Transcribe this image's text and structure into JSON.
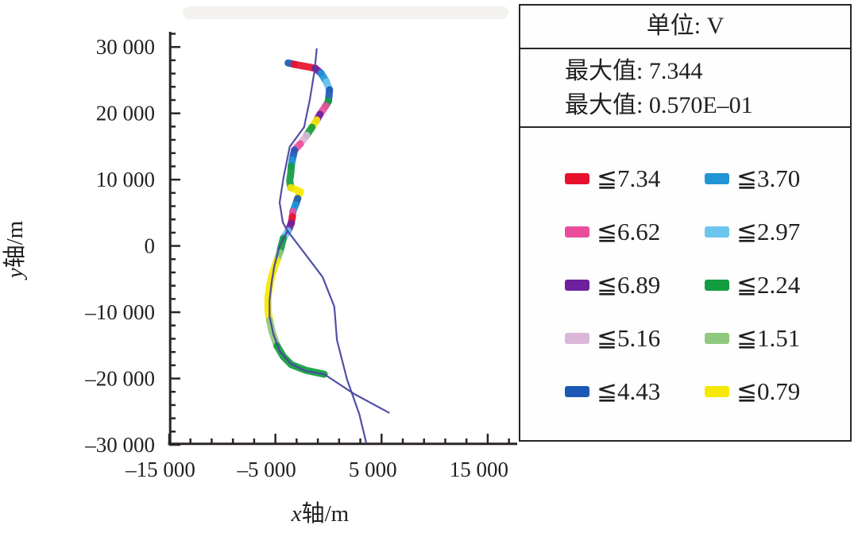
{
  "legend": {
    "unit_label": "单位: V",
    "stat_lines": [
      "最大值: 7.344",
      "最大值: 0.570E–01"
    ],
    "columns": {
      "left": [
        {
          "color": "red",
          "hex": "#e8112d",
          "label": "≦7.34"
        },
        {
          "color": "magenta",
          "hex": "#ea4d9c",
          "label": "≦6.62"
        },
        {
          "color": "purple",
          "hex": "#6e219d",
          "label": "≦6.89"
        },
        {
          "color": "light_pink",
          "hex": "#dcb6d9",
          "label": "≦5.16"
        },
        {
          "color": "dark_blue",
          "hex": "#1c58b5",
          "label": "≦4.43"
        }
      ],
      "right": [
        {
          "color": "blue",
          "hex": "#1f95d6",
          "label": "≦3.70"
        },
        {
          "color": "light_blue",
          "hex": "#6cc5ed",
          "label": "≦2.97"
        },
        {
          "color": "green",
          "hex": "#129c3f",
          "label": "≦2.24"
        },
        {
          "color": "light_green",
          "hex": "#8fc97d",
          "label": "≦1.51"
        },
        {
          "color": "yellow",
          "hex": "#f6e800",
          "label": "≦0.79"
        }
      ]
    }
  },
  "chart_data": {
    "type": "line",
    "title": "",
    "unit": "V",
    "max_value": "7.344",
    "second_max_value": "0.570E–01",
    "grid": false,
    "x_axis": {
      "label": "x轴/m",
      "label_var": "x",
      "label_rest": "轴/m",
      "range": [
        -15000,
        17700
      ],
      "minor_step": 2000,
      "major_ticks": [
        {
          "v": -15000,
          "label": "–15 000"
        },
        {
          "v": -5000,
          "label": "–5 000"
        },
        {
          "v": 5000,
          "label": "5 000"
        },
        {
          "v": 15000,
          "label": "15 000"
        }
      ]
    },
    "y_axis": {
      "label": "y轴/m",
      "label_var": "y",
      "label_rest": "轴/m",
      "range": [
        -30000,
        32300
      ],
      "minor_step": 2000,
      "major_ticks": [
        {
          "v": 30000,
          "label": "30 000"
        },
        {
          "v": 20000,
          "label": "20 000"
        },
        {
          "v": 10000,
          "label": "10 000"
        },
        {
          "v": 0,
          "label": "0"
        },
        {
          "v": -10000,
          "label": "–10 000"
        },
        {
          "v": -20000,
          "label": "–20 000"
        },
        {
          "v": -30000,
          "label": "–30 000"
        }
      ]
    },
    "palette": {
      "red": "#e8112d",
      "magenta": "#ea4d9c",
      "purple": "#6e219d",
      "light_pink": "#dcb6d9",
      "dark_blue": "#1c58b5",
      "blue": "#1f95d6",
      "light_blue": "#6cc5ed",
      "green": "#129c3f",
      "light_green": "#8fc97d",
      "yellow": "#f6e800",
      "route": "#4747a2"
    },
    "series": [
      {
        "name": "pipeline-route",
        "type": "thin-line",
        "color": "route",
        "points": [
          [
            -1100,
            29800
          ],
          [
            -1300,
            26550
          ],
          [
            -1750,
            22100
          ],
          [
            -2300,
            17900
          ],
          [
            -3650,
            14950
          ],
          [
            -4250,
            10150
          ],
          [
            -4600,
            6550
          ],
          [
            -4300,
            3550
          ],
          [
            -3850,
            2250
          ],
          [
            -4600,
            0
          ],
          [
            -5100,
            -3050
          ],
          [
            -5350,
            -5450
          ],
          [
            -5550,
            -8200
          ],
          [
            -5550,
            -10600
          ],
          [
            -5200,
            -13250
          ],
          [
            -4600,
            -15850
          ],
          [
            -3550,
            -17800
          ],
          [
            -2150,
            -18850
          ],
          [
            -400,
            -19350
          ],
          [
            2450,
            -22350
          ],
          [
            5750,
            -25200
          ]
        ]
      },
      {
        "name": "route-branch",
        "type": "thin-line",
        "color": "route",
        "points": [
          [
            -3850,
            2250
          ],
          [
            -2300,
            -1000
          ],
          [
            -550,
            -4700
          ],
          [
            550,
            -9150
          ],
          [
            800,
            -14200
          ],
          [
            1750,
            -20150
          ],
          [
            2900,
            -25350
          ],
          [
            3550,
            -29650
          ]
        ]
      },
      {
        "name": "voltage-band",
        "type": "colored-band",
        "segments": [
          {
            "color": "dark_blue",
            "points": [
              [
                -3800,
                27600
              ],
              [
                -3250,
                27400
              ]
            ]
          },
          {
            "color": "red",
            "points": [
              [
                -3250,
                27400
              ],
              [
                -1250,
                26800
              ]
            ]
          },
          {
            "color": "purple",
            "points": [
              [
                -1250,
                26800
              ],
              [
                -700,
                26050
              ]
            ]
          },
          {
            "color": "blue",
            "points": [
              [
                -700,
                26050
              ],
              [
                -200,
                24750
              ]
            ]
          },
          {
            "color": "light_blue",
            "points": [
              [
                -200,
                24750
              ],
              [
                100,
                23550
              ]
            ]
          },
          {
            "color": "dark_blue",
            "points": [
              [
                100,
                23550
              ],
              [
                0,
                21850
              ]
            ]
          },
          {
            "color": "green",
            "points": [
              [
                0,
                21850
              ],
              [
                -250,
                21150
              ]
            ]
          },
          {
            "color": "magenta",
            "points": [
              [
                -250,
                21150
              ],
              [
                -800,
                19850
              ]
            ]
          },
          {
            "color": "purple",
            "points": [
              [
                -800,
                19850
              ],
              [
                -1100,
                19000
              ]
            ]
          },
          {
            "color": "yellow",
            "points": [
              [
                -1100,
                19000
              ],
              [
                -1550,
                17900
              ]
            ]
          },
          {
            "color": "green",
            "points": [
              [
                -1550,
                17900
              ],
              [
                -2050,
                16700
              ]
            ]
          },
          {
            "color": "light_pink",
            "points": [
              [
                -2050,
                16700
              ],
              [
                -2650,
                15400
              ]
            ]
          },
          {
            "color": "magenta",
            "points": [
              [
                -2650,
                15400
              ],
              [
                -3200,
                14450
              ]
            ]
          },
          {
            "color": "dark_blue",
            "points": [
              [
                -3200,
                14450
              ],
              [
                -3400,
                13000
              ]
            ]
          },
          {
            "color": "blue",
            "points": [
              [
                -3400,
                13000
              ],
              [
                -3500,
                12050
              ]
            ]
          },
          {
            "color": "green",
            "points": [
              [
                -3500,
                12050
              ],
              [
                -3550,
                10950
              ],
              [
                -3650,
                9800
              ],
              [
                -3550,
                8800
              ]
            ]
          },
          {
            "color": "yellow",
            "points": [
              [
                -3550,
                8800
              ],
              [
                -2650,
                8200
              ],
              [
                -2900,
                7150
              ]
            ]
          },
          {
            "color": "dark_blue",
            "points": [
              [
                -2900,
                7150
              ],
              [
                -3100,
                6200
              ]
            ]
          },
          {
            "color": "blue",
            "points": [
              [
                -3100,
                6200
              ],
              [
                -3350,
                5200
              ]
            ]
          },
          {
            "color": "magenta",
            "points": [
              [
                -3350,
                5200
              ],
              [
                -3400,
                4400
              ]
            ]
          },
          {
            "color": "red",
            "points": [
              [
                -3400,
                4400
              ],
              [
                -3500,
                3450
              ]
            ]
          },
          {
            "color": "purple",
            "points": [
              [
                -3500,
                3450
              ],
              [
                -3800,
                2250
              ]
            ]
          },
          {
            "color": "light_blue",
            "points": [
              [
                -3800,
                2250
              ],
              [
                -4250,
                1150
              ]
            ]
          },
          {
            "color": "green",
            "points": [
              [
                -4250,
                1150
              ],
              [
                -4600,
                -1000
              ]
            ]
          },
          {
            "color": "light_green",
            "points": [
              [
                -4600,
                -1000
              ],
              [
                -4850,
                -2200
              ]
            ]
          },
          {
            "color": "yellow",
            "points": [
              [
                -4850,
                -2200
              ],
              [
                -5100,
                -3300
              ],
              [
                -5350,
                -4600
              ],
              [
                -5550,
                -6050
              ],
              [
                -5700,
                -7850
              ],
              [
                -5700,
                -9650
              ],
              [
                -5550,
                -11200
              ]
            ]
          },
          {
            "color": "light_green",
            "points": [
              [
                -5550,
                -11200
              ],
              [
                -5300,
                -13000
              ],
              [
                -4850,
                -15050
              ]
            ]
          },
          {
            "color": "green",
            "points": [
              [
                -4850,
                -15050
              ],
              [
                -4250,
                -16700
              ],
              [
                -3500,
                -17900
              ],
              [
                -2150,
                -18750
              ],
              [
                -400,
                -19350
              ]
            ]
          }
        ]
      }
    ]
  }
}
